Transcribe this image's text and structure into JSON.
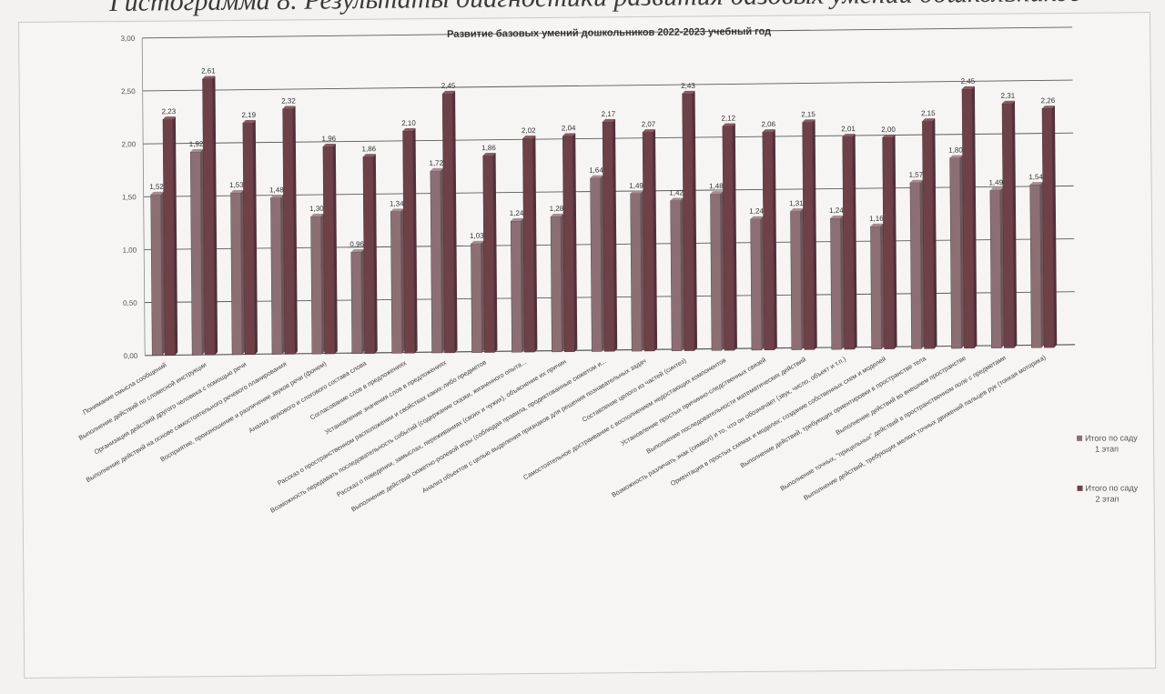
{
  "caption": "Гистограмма 8. Результаты диагностики развития базовых умений дошкольников",
  "colors": {
    "stage1": "#8c6f74",
    "stage2": "#6e4048",
    "grid": "#5a5a5a"
  },
  "chart_data": {
    "type": "bar",
    "title": "Развитие базовых умений дошкольников 2022-2023 учебный год",
    "ylim": [
      0,
      3
    ],
    "yticks": [
      "0,00",
      "0,50",
      "1,00",
      "1,50",
      "2,00",
      "2,50",
      "3,00"
    ],
    "grid": true,
    "legend_position": "right",
    "categories": [
      "Понимание смысла сообщений",
      "Выполнение действий по словесной инструкции",
      "Организация действий другого человека с помощью речи",
      "Выполнение действий на основе самостоятельного речевого планирования",
      "Восприятие, произношение и различение звуков речи (фонем)",
      "Анализ звукового и слогового состава слова",
      "Согласование слов в предложениях",
      "Установление значения слов в предложениях",
      "Рассказ о пространственном расположении и свойствах каких-либо предметов",
      "Возможность передавать последовательность событий (содержание сказки, жизненного опыта...",
      "Рассказ о поведении, замыслах, переживаниях (своих и чужих), объяснение их причин",
      "Выполнение действий сюжетно-ролевой игры (соблюдая правила, продиктованные сюжетом и...",
      "Анализ объектов с целью выделения признаков для решения познавательных задач",
      "Составление целого из частей (синтез)",
      "Самостоятельное достраивание с восполнением недостающих компонентов",
      "Установление простых причинно-следственных связей",
      "Выполнение последовательности математических действий",
      "Возможность различать знак (символ) и то, что он обозначает (звук, число, объект и т.п.)",
      "Ориентация в простых схемах и моделях; создание собственных схем и моделей",
      "Выполнение действий, требующих ориентировки в пространстве тела",
      "Выполнение действий во внешнем пространстве",
      "Выполнение точных, \"прицельных\" действий в пространственном поле с предметами",
      "Выполнение действий, требующих мелких точных движений пальцев рук (тонкая моторика)"
    ],
    "series": [
      {
        "name": "Итого по саду 1 этап",
        "values": [
          1.52,
          1.92,
          1.53,
          1.48,
          1.3,
          0.96,
          1.34,
          1.72,
          1.03,
          1.24,
          1.28,
          1.64,
          1.49,
          1.42,
          1.48,
          1.24,
          1.31,
          1.24,
          1.16,
          1.57,
          1.8,
          1.49,
          1.54
        ],
        "labels": [
          "1,52",
          "1,92",
          "1,53",
          "1,48",
          "1,30",
          "0,96",
          "1,34",
          "1,72",
          "1,03",
          "1,24",
          "1,28",
          "1,64",
          "1,49",
          "1,42",
          "1,48",
          "1,24",
          "1,31",
          "1,24",
          "1,16",
          "1,57",
          "1,80",
          "1,49",
          "1,54"
        ]
      },
      {
        "name": "Итого по саду 2 этап",
        "values": [
          2.23,
          2.61,
          2.19,
          2.32,
          1.96,
          1.86,
          2.1,
          2.45,
          1.86,
          2.02,
          2.04,
          2.17,
          2.07,
          2.43,
          2.12,
          2.06,
          2.15,
          2.01,
          2.0,
          2.15,
          2.45,
          2.31,
          2.26
        ],
        "labels": [
          "2,23",
          "2,61",
          "2,19",
          "2,32",
          "1,96",
          "1,86",
          "2,10",
          "2,45",
          "1,86",
          "2,02",
          "2,04",
          "2,17",
          "2,07",
          "2,43",
          "2,12",
          "2,06",
          "2,15",
          "2,01",
          "2,00",
          "2,15",
          "2,45",
          "2,31",
          "2,26"
        ]
      }
    ]
  },
  "legend": [
    {
      "line1": "Итого  по саду",
      "line2": "1 этап"
    },
    {
      "line1": "Итого  по саду",
      "line2": "2 этап"
    }
  ]
}
